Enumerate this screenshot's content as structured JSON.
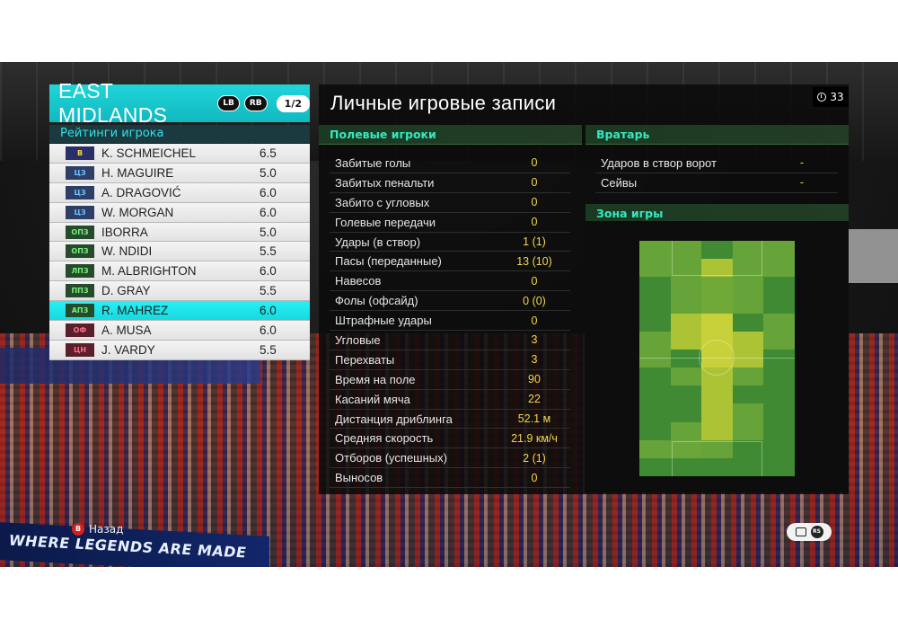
{
  "team": {
    "name": "EAST MIDLANDS",
    "lb_label": "LB",
    "rb_label": "RB",
    "page": "1/2"
  },
  "ratings_title": "Рейтинги игрока",
  "players": [
    {
      "pos": "В",
      "name": "K. SCHMEICHEL",
      "rating": "6.5",
      "group": "gk"
    },
    {
      "pos": "ЦЗ",
      "name": "H. MAGUIRE",
      "rating": "5.0",
      "group": "df"
    },
    {
      "pos": "ЦЗ",
      "name": "A. DRAGOVIĆ",
      "rating": "6.0",
      "group": "df"
    },
    {
      "pos": "ЦЗ",
      "name": "W. MORGAN",
      "rating": "6.0",
      "group": "df"
    },
    {
      "pos": "ОПЗ",
      "name": "IBORRA",
      "rating": "5.0",
      "group": "mf"
    },
    {
      "pos": "ОПЗ",
      "name": "W. NDIDI",
      "rating": "5.5",
      "group": "mf"
    },
    {
      "pos": "ЛПЗ",
      "name": "M. ALBRIGHTON",
      "rating": "6.0",
      "group": "mf"
    },
    {
      "pos": "ППЗ",
      "name": "D. GRAY",
      "rating": "5.5",
      "group": "mf"
    },
    {
      "pos": "АПЗ",
      "name": "R. MAHREZ",
      "rating": "6.0",
      "group": "mf",
      "selected": true
    },
    {
      "pos": "ОФ",
      "name": "A. MUSA",
      "rating": "6.0",
      "group": "fw"
    },
    {
      "pos": "ЦН",
      "name": "J. VARDY",
      "rating": "5.5",
      "group": "fw"
    }
  ],
  "main": {
    "title": "Личные игровые записи",
    "timer": "33",
    "field_players_header": "Полевые игроки",
    "goalkeeper_header": "Вратарь",
    "zone_header": "Зона игры"
  },
  "field_stats": [
    {
      "label": "Забитые голы",
      "value": "0"
    },
    {
      "label": "Забитых пенальти",
      "value": "0"
    },
    {
      "label": "Забито с угловых",
      "value": "0"
    },
    {
      "label": "Голевые передачи",
      "value": "0"
    },
    {
      "label": "Удары (в створ)",
      "value": "1 (1)"
    },
    {
      "label": "Пасы (переданные)",
      "value": "13 (10)"
    },
    {
      "label": "Навесов",
      "value": "0"
    },
    {
      "label": "Фолы (офсайд)",
      "value": "0 (0)"
    },
    {
      "label": "Штрафные удары",
      "value": "0"
    },
    {
      "label": "Угловые",
      "value": "3"
    },
    {
      "label": "Перехваты",
      "value": "3"
    },
    {
      "label": "Время на поле",
      "value": "90"
    },
    {
      "label": "Касаний мяча",
      "value": "22"
    },
    {
      "label": "Дистанция дриблинга",
      "value": "52.1 м"
    },
    {
      "label": "Средняя скорость",
      "value": "21.9 км/ч"
    },
    {
      "label": "Отборов (успешных)",
      "value": "2 (1)"
    },
    {
      "label": "Выносов",
      "value": "0"
    }
  ],
  "gk_stats": [
    {
      "label": "Ударов в створ ворот",
      "value": "-"
    },
    {
      "label": "Сейвы",
      "value": "-"
    }
  ],
  "heatmap_colors": {
    "low": "#3f8a32",
    "mid": "#6aa63a",
    "high": "#b7c935",
    "peak": "#d6d83a"
  },
  "controls": {
    "back_label": "Назад",
    "back_button": "B",
    "rs_button": "RS"
  },
  "banner_text": "WHERE LEGENDS ARE MADE"
}
